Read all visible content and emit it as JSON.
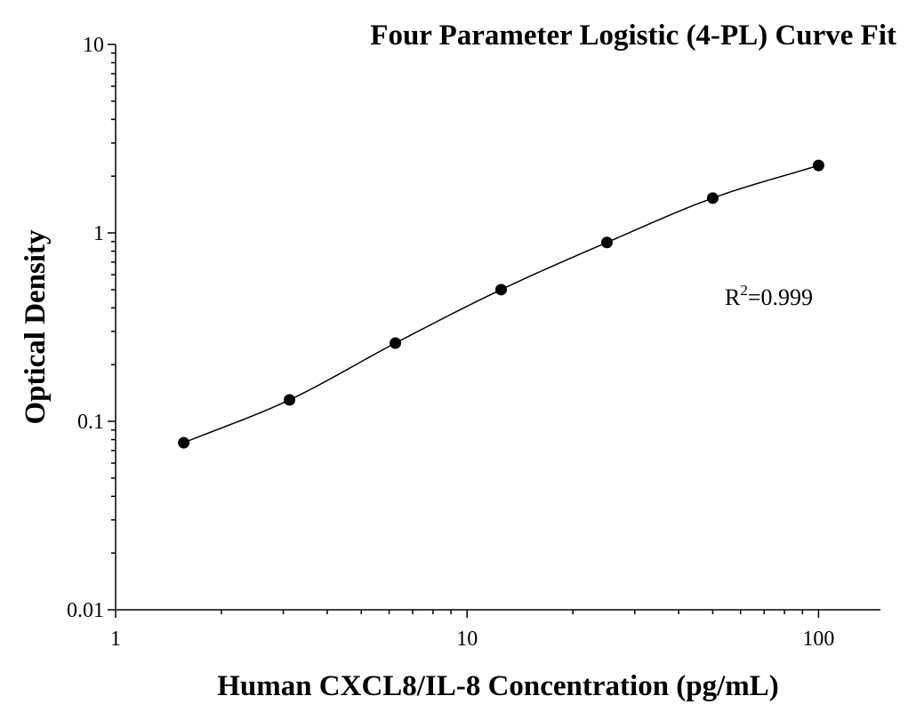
{
  "chart_data": {
    "type": "scatter",
    "title": "Four Parameter Logistic (4-PL) Curve Fit",
    "xlabel": "Human CXCL8/IL-8 Concentration (pg/mL)",
    "ylabel": "Optical Density",
    "x_scale": "log",
    "y_scale": "log",
    "xlim": [
      1,
      150
    ],
    "ylim": [
      0.01,
      10
    ],
    "x_ticks": [
      "1",
      "10",
      "100"
    ],
    "y_ticks": [
      "0.01",
      "0.1",
      "1",
      "10"
    ],
    "grid": false,
    "series": [
      {
        "x": [
          1.5625,
          3.125,
          6.25,
          12.5,
          25,
          50,
          100
        ],
        "y": [
          0.077,
          0.13,
          0.26,
          0.5,
          0.89,
          1.53,
          2.28
        ]
      }
    ],
    "fit": {
      "model": "4-PL"
    },
    "annotation": {
      "r2_prefix": "R",
      "r2_sup": "2",
      "r2_value": "=0.999"
    }
  }
}
